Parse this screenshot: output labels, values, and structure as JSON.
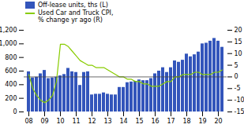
{
  "chart_data": {
    "type": "bar",
    "categories": [
      "08",
      null,
      null,
      null,
      "09",
      null,
      null,
      null,
      "10",
      null,
      null,
      null,
      "11",
      null,
      null,
      null,
      "12",
      null,
      null,
      null,
      "13",
      null,
      null,
      null,
      "14",
      null,
      null,
      null,
      "15",
      null,
      null,
      null,
      "16",
      null,
      null,
      null,
      "17",
      null,
      null,
      null,
      "18",
      null,
      null,
      null,
      "19",
      null,
      null,
      null,
      "20",
      null
    ],
    "series": [
      {
        "name": "Off-lease units, ths (L)",
        "type": "bar",
        "color": "#3355bb",
        "values": [
          590,
          500,
          510,
          560,
          610,
          490,
          500,
          510,
          530,
          550,
          640,
          590,
          580,
          390,
          580,
          590,
          250,
          260,
          260,
          280,
          260,
          250,
          250,
          360,
          360,
          430,
          440,
          450,
          470,
          460,
          460,
          490,
          560,
          600,
          650,
          580,
          650,
          750,
          730,
          760,
          850,
          810,
          840,
          880,
          1000,
          1010,
          1040,
          1080,
          1040,
          950
        ]
      },
      {
        "name": "Used Car and Truck CPI,\n% change yr ago (R)",
        "type": "line",
        "color": "#88cc00",
        "axis": "y2",
        "values": [
          1,
          -5,
          -8,
          -10,
          -11,
          -10,
          -8,
          -2,
          14,
          14,
          13,
          11,
          9,
          7,
          6,
          5,
          5,
          4,
          4,
          4,
          3,
          2,
          1,
          0,
          0,
          -1,
          -1,
          -2,
          -2,
          -3,
          -3,
          -4,
          -4,
          -4,
          -3,
          -2,
          -2,
          0,
          0,
          1,
          1,
          1,
          2,
          2,
          1,
          1,
          1,
          2,
          2,
          3
        ]
      }
    ],
    "ylim": [
      0,
      1200
    ],
    "yticks": [
      0,
      200,
      400,
      600,
      800,
      {
        "value": 1000,
        "label": "1,000"
      },
      {
        "value": 1200,
        "label": "1,200"
      }
    ],
    "y2lim": [
      -15,
      20
    ],
    "y2ticks": [
      -15,
      -10,
      -5,
      0,
      5,
      10,
      15,
      20
    ],
    "hlines": [
      {
        "value": 0,
        "axis": "y2",
        "color": "#444444"
      }
    ],
    "legend": "upper left"
  }
}
